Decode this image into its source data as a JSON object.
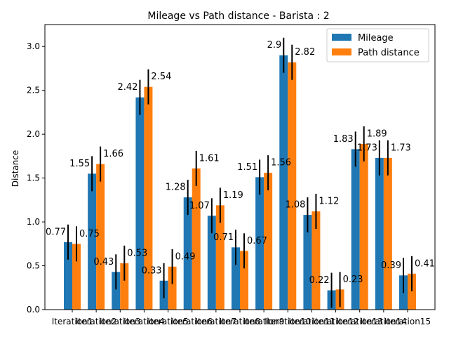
{
  "chart_data": {
    "type": "bar",
    "title": "Mileage vs Path distance - Barista : 2",
    "xlabel": "",
    "ylabel": "Distance",
    "ylim": [
      0,
      3.25
    ],
    "yticks": [
      "0.0",
      "0.5",
      "1.0",
      "1.5",
      "2.0",
      "2.5",
      "3.0"
    ],
    "categories": [
      "Iteration1",
      "Iteration2",
      "Iteration3",
      "Iteration4",
      "Iteration5",
      "Iteration6",
      "Iteration7",
      "Iteration8",
      "Iteration9",
      "Iteration10",
      "Iteration11",
      "Iteration12",
      "Iteration13",
      "Iteration14",
      "Iteration15"
    ],
    "legend_position": "top-right",
    "grid": false,
    "series": [
      {
        "name": "Mileage",
        "color": "#1f77b4",
        "values": [
          0.77,
          1.55,
          0.43,
          2.42,
          0.33,
          1.28,
          1.07,
          0.71,
          1.51,
          2.9,
          1.08,
          0.22,
          1.83,
          1.73,
          0.39
        ],
        "errors": [
          0.2,
          0.2,
          0.2,
          0.2,
          0.2,
          0.2,
          0.2,
          0.2,
          0.2,
          0.2,
          0.2,
          0.2,
          0.2,
          0.2,
          0.2
        ],
        "labels": [
          "0.77",
          "1.55",
          "0.43",
          "2.42",
          "0.33",
          "1.28",
          "1.07",
          "0.71",
          "1.51",
          "2.9",
          "1.08",
          "0.22",
          "1.83",
          "1.73",
          "0.39"
        ]
      },
      {
        "name": "Path distance",
        "color": "#ff7f0e",
        "values": [
          0.75,
          1.66,
          0.53,
          2.54,
          0.49,
          1.61,
          1.19,
          0.67,
          1.56,
          2.82,
          1.12,
          0.23,
          1.89,
          1.73,
          0.41
        ],
        "errors": [
          0.2,
          0.2,
          0.2,
          0.2,
          0.2,
          0.2,
          0.2,
          0.2,
          0.2,
          0.2,
          0.2,
          0.2,
          0.2,
          0.2,
          0.2
        ],
        "labels": [
          "0.75",
          "1.66",
          "0.53",
          "2.54",
          "0.49",
          "1.61",
          "1.19",
          "0.67",
          "1.56",
          "2.82",
          "1.12",
          "0.23",
          "1.89",
          "1.73",
          "0.41"
        ]
      }
    ]
  }
}
